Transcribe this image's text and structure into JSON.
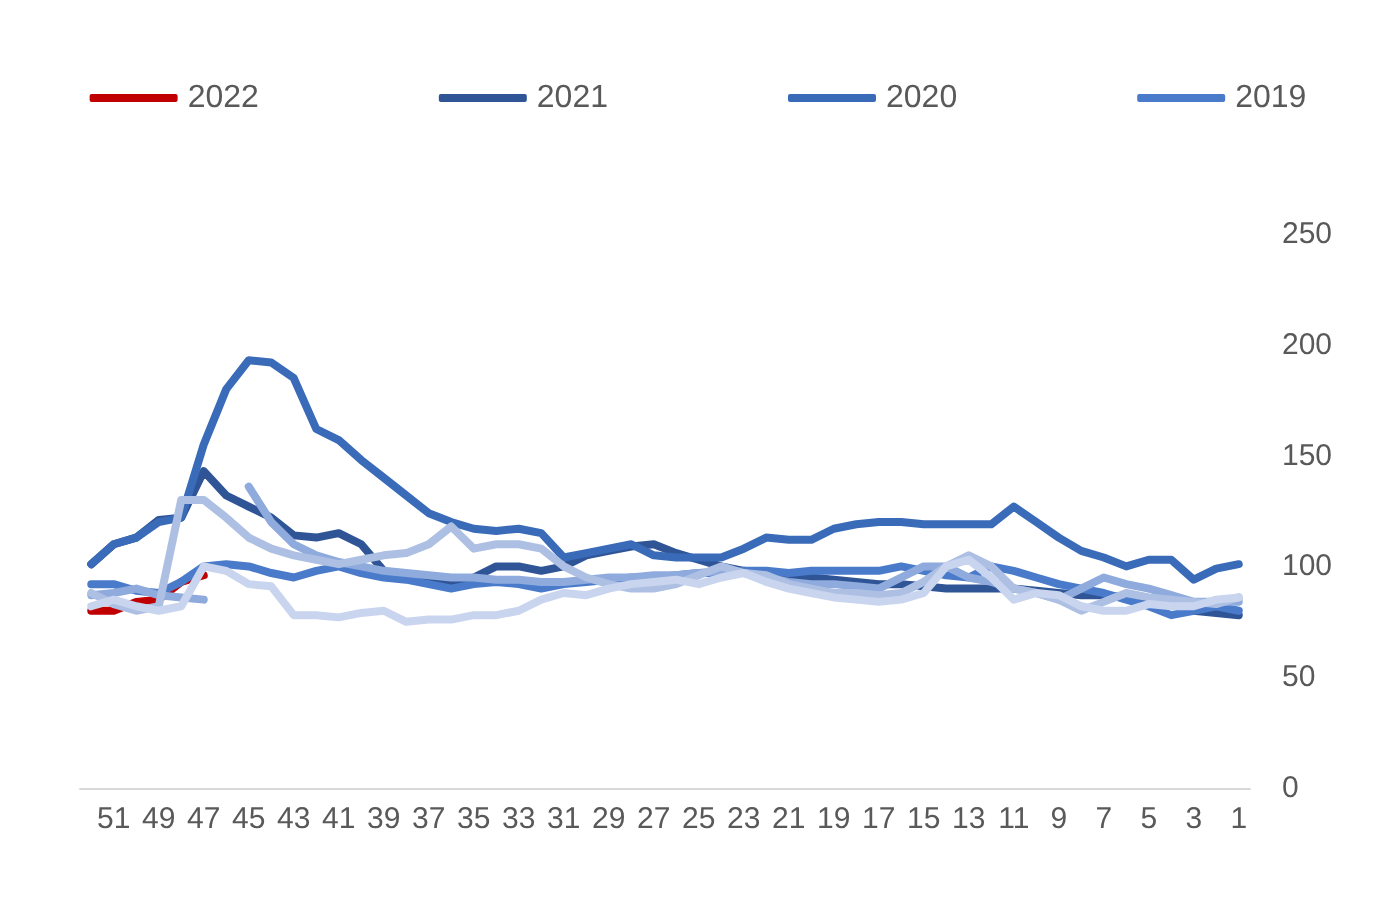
{
  "chart_data": {
    "type": "line",
    "categories": [
      null,
      "51",
      null,
      "49",
      null,
      "47",
      null,
      "45",
      null,
      "43",
      null,
      "41",
      null,
      "39",
      null,
      "37",
      null,
      "35",
      null,
      "33",
      null,
      "31",
      null,
      "29",
      null,
      "27",
      null,
      "25",
      null,
      "23",
      null,
      "21",
      null,
      "19",
      null,
      "17",
      null,
      "15",
      null,
      "13",
      null,
      "11",
      null,
      "9",
      null,
      "7",
      null,
      "5",
      null,
      "3",
      null,
      "1"
    ],
    "series": [
      {
        "name": "2022",
        "color": "#c00000",
        "values": [
          80,
          80,
          84,
          85,
          93,
          96,
          null,
          null,
          null,
          null,
          null,
          null,
          null,
          null,
          null,
          null,
          null,
          null,
          null,
          null,
          null,
          null,
          null,
          null,
          null,
          null,
          null,
          null,
          null,
          null,
          null,
          null,
          null,
          null,
          null,
          null,
          null,
          null,
          null,
          null,
          null,
          null,
          null,
          null,
          null,
          null,
          null,
          null,
          null,
          null,
          null,
          null
        ]
      },
      {
        "name": "2021",
        "color": "#2f5597",
        "values": [
          101,
          110,
          113,
          121,
          122,
          143,
          132,
          127,
          122,
          114,
          113,
          115,
          110,
          98,
          95,
          93,
          92,
          95,
          100,
          100,
          98,
          100,
          105,
          107,
          109,
          110,
          106,
          103,
          100,
          98,
          97,
          96,
          95,
          94,
          93,
          92,
          92,
          91,
          90,
          90,
          90,
          90,
          89,
          88,
          87,
          87,
          86,
          85,
          84,
          80,
          79,
          78
        ]
      },
      {
        "name": "2020",
        "color": "#3a6bb8",
        "values": [
          101,
          110,
          113,
          120,
          122,
          155,
          180,
          193,
          192,
          185,
          162,
          157,
          148,
          140,
          132,
          124,
          120,
          117,
          116,
          117,
          115,
          104,
          106,
          108,
          110,
          105,
          104,
          104,
          104,
          108,
          113,
          112,
          112,
          117,
          119,
          120,
          120,
          119,
          119,
          119,
          119,
          127,
          120,
          113,
          107,
          104,
          100,
          103,
          103,
          94,
          99,
          101
        ]
      },
      {
        "name": "2019",
        "color": "#4a7bcb",
        "values": [
          92,
          92,
          89,
          88,
          93,
          100,
          101,
          100,
          97,
          95,
          98,
          100,
          97,
          95,
          94,
          92,
          90,
          92,
          93,
          92,
          90,
          92,
          93,
          94,
          95,
          95,
          96,
          97,
          97,
          98,
          98,
          97,
          98,
          98,
          98,
          98,
          100,
          98,
          96,
          95,
          100,
          98,
          95,
          92,
          90,
          88,
          85,
          82,
          78,
          80,
          82,
          80
        ]
      },
      {
        "color": "#8faadc",
        "values": [
          87,
          88,
          90,
          87,
          86,
          85,
          null,
          136,
          120,
          110,
          105,
          102,
          100,
          98,
          97,
          96,
          95,
          95,
          94,
          94,
          93,
          93,
          94,
          95,
          95,
          96,
          96,
          97,
          98,
          97,
          95,
          93,
          92,
          92,
          91,
          90,
          95,
          100,
          100,
          95,
          93,
          90,
          88,
          85,
          90,
          95,
          92,
          90,
          87,
          84,
          84,
          84
        ]
      },
      {
        "color": "#adc0e4",
        "values": [
          88,
          83,
          80,
          82,
          130,
          130,
          122,
          113,
          108,
          105,
          103,
          101,
          103,
          105,
          106,
          110,
          118,
          108,
          110,
          110,
          108,
          100,
          95,
          92,
          90,
          90,
          92,
          96,
          100,
          97,
          96,
          92,
          90,
          88,
          88,
          87,
          88,
          93,
          100,
          105,
          100,
          90,
          88,
          85,
          80,
          84,
          88,
          86,
          85,
          84,
          83,
          86
        ]
      },
      {
        "color": "#c9d5ee",
        "values": [
          82,
          85,
          82,
          80,
          82,
          100,
          98,
          92,
          91,
          78,
          78,
          77,
          79,
          80,
          75,
          76,
          76,
          78,
          78,
          80,
          85,
          88,
          87,
          90,
          92,
          93,
          94,
          92,
          95,
          97,
          93,
          90,
          88,
          86,
          85,
          84,
          85,
          88,
          100,
          103,
          95,
          85,
          88,
          87,
          82,
          80,
          80,
          83,
          82,
          82,
          85,
          86
        ]
      }
    ],
    "ylim": [
      0,
      250
    ],
    "yticks": [
      0,
      50,
      100,
      150,
      200,
      250
    ],
    "legend": "top",
    "grid": false,
    "marker": "none",
    "line_style": "solid"
  }
}
